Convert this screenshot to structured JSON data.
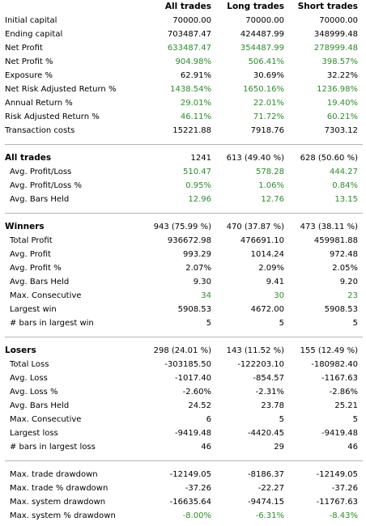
{
  "header": {
    "col1": "All trades",
    "col2": "Long trades",
    "col3": "Short trades"
  },
  "summary": [
    {
      "label": "Initial capital",
      "v": [
        "70000.00",
        "70000.00",
        "70000.00"
      ],
      "green": false
    },
    {
      "label": "Ending capital",
      "v": [
        "703487.47",
        "424487.99",
        "348999.48"
      ],
      "green": false
    },
    {
      "label": "Net Profit",
      "v": [
        "633487.47",
        "354487.99",
        "278999.48"
      ],
      "green": true
    },
    {
      "label": "Net Profit %",
      "v": [
        "904.98%",
        "506.41%",
        "398.57%"
      ],
      "green": true
    },
    {
      "label": "Exposure %",
      "v": [
        "62.91%",
        "30.69%",
        "32.22%"
      ],
      "green": false
    },
    {
      "label": "Net Risk Adjusted Return %",
      "v": [
        "1438.54%",
        "1650.16%",
        "1236.98%"
      ],
      "green": true
    },
    {
      "label": "Annual Return %",
      "v": [
        "29.01%",
        "22.01%",
        "19.40%"
      ],
      "green": true
    },
    {
      "label": "Risk Adjusted Return %",
      "v": [
        "46.11%",
        "71.72%",
        "60.21%"
      ],
      "green": true
    },
    {
      "label": "Transaction costs",
      "v": [
        "15221.88",
        "7918.76",
        "7303.12"
      ],
      "green": false
    }
  ],
  "all_trades": {
    "title": "All trades",
    "counts": [
      "1241",
      "613 (49.40 %)",
      "628 (50.60 %)"
    ],
    "rows": [
      {
        "label": "Avg. Profit/Loss",
        "v": [
          "510.47",
          "578.28",
          "444.27"
        ],
        "green": true
      },
      {
        "label": "Avg. Profit/Loss %",
        "v": [
          "0.95%",
          "1.06%",
          "0.84%"
        ],
        "green": true
      },
      {
        "label": "Avg. Bars Held",
        "v": [
          "12.96",
          "12.76",
          "13.15"
        ],
        "green": true
      }
    ]
  },
  "winners": {
    "title": "Winners",
    "counts": [
      "943 (75.99 %)",
      "470 (37.87 %)",
      "473 (38.11 %)"
    ],
    "rows": [
      {
        "label": "Total Profit",
        "v": [
          "936672.98",
          "476691.10",
          "459981.88"
        ],
        "green": false
      },
      {
        "label": "Avg. Profit",
        "v": [
          "993.29",
          "1014.24",
          "972.48"
        ],
        "green": false
      },
      {
        "label": "Avg. Profit %",
        "v": [
          "2.07%",
          "2.09%",
          "2.05%"
        ],
        "green": false
      },
      {
        "label": "Avg. Bars Held",
        "v": [
          "9.30",
          "9.41",
          "9.20"
        ],
        "green": false
      },
      {
        "label": "Max. Consecutive",
        "v": [
          "34",
          "30",
          "23"
        ],
        "green": true
      },
      {
        "label": "Largest win",
        "v": [
          "5908.53",
          "4672.00",
          "5908.53"
        ],
        "green": false
      },
      {
        "label": "# bars in largest win",
        "v": [
          "5",
          "5",
          "5"
        ],
        "green": false
      }
    ]
  },
  "losers": {
    "title": "Losers",
    "counts": [
      "298 (24.01 %)",
      "143 (11.52 %)",
      "155 (12.49 %)"
    ],
    "rows": [
      {
        "label": "Total Loss",
        "v": [
          "-303185.50",
          "-122203.10",
          "-180982.40"
        ],
        "green": false
      },
      {
        "label": "Avg. Loss",
        "v": [
          "-1017.40",
          "-854.57",
          "-1167.63"
        ],
        "green": false
      },
      {
        "label": "Avg. Loss %",
        "v": [
          "-2.60%",
          "-2.31%",
          "-2.86%"
        ],
        "green": false
      },
      {
        "label": "Avg. Bars Held",
        "v": [
          "24.52",
          "23.78",
          "25.21"
        ],
        "green": false
      },
      {
        "label": "Max. Consecutive",
        "v": [
          "6",
          "5",
          "5"
        ],
        "green": false
      },
      {
        "label": "Largest loss",
        "v": [
          "-9419.48",
          "-4420.45",
          "-9419.48"
        ],
        "green": false
      },
      {
        "label": "# bars in largest loss",
        "v": [
          "46",
          "29",
          "46"
        ],
        "green": false
      }
    ]
  },
  "drawdown": [
    {
      "label": "Max. trade drawdown",
      "v": [
        "-12149.05",
        "-8186.37",
        "-12149.05"
      ],
      "green": false
    },
    {
      "label": "Max. trade % drawdown",
      "v": [
        "-37.26",
        "-22.27",
        "-37.26"
      ],
      "green": false
    },
    {
      "label": "Max. system drawdown",
      "v": [
        "-16635.64",
        "-9474.15",
        "-11767.63"
      ],
      "green": false
    },
    {
      "label": "Max. system % drawdown",
      "v": [
        "-8.00%",
        "-6.31%",
        "-8.43%"
      ],
      "green": true
    }
  ],
  "colors": {
    "positive": "#2e8b2e",
    "separator": "#b4b4b4"
  }
}
